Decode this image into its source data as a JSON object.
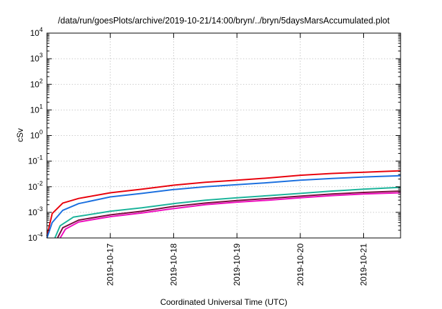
{
  "chart_data": {
    "type": "line",
    "title": "/data/run/goesPlots/archive/2019-10-21/14:00/bryn/../bryn/5daysMarsAccumulated.plot",
    "xlabel": "Coordinated Universal Time (UTC)",
    "ylabel": "cSv",
    "y_scale": "log",
    "ylim": [
      0.0001,
      10000
    ],
    "y_ticks": [
      {
        "value": 0.0001,
        "base": "10",
        "exp": "-4"
      },
      {
        "value": 0.001,
        "base": "10",
        "exp": "-3"
      },
      {
        "value": 0.01,
        "base": "10",
        "exp": "-2"
      },
      {
        "value": 0.1,
        "base": "10",
        "exp": "-1"
      },
      {
        "value": 1,
        "base": "10",
        "exp": "0"
      },
      {
        "value": 10,
        "base": "10",
        "exp": "1"
      },
      {
        "value": 100,
        "base": "10",
        "exp": "2"
      },
      {
        "value": 1000,
        "base": "10",
        "exp": "3"
      },
      {
        "value": 10000,
        "base": "10",
        "exp": "4"
      }
    ],
    "xlim": [
      "2019-10-16T00:00",
      "2019-10-21T14:00"
    ],
    "x_ticks": [
      {
        "value": "2019-10-17T00:00",
        "label": "2019-10-17"
      },
      {
        "value": "2019-10-18T00:00",
        "label": "2019-10-18"
      },
      {
        "value": "2019-10-19T00:00",
        "label": "2019-10-19"
      },
      {
        "value": "2019-10-20T00:00",
        "label": "2019-10-20"
      },
      {
        "value": "2019-10-21T00:00",
        "label": "2019-10-21"
      }
    ],
    "grid": true,
    "legend": "none",
    "series": [
      {
        "color": "#e8000b",
        "points": [
          [
            "2019-10-16T00:00",
            0.00012
          ],
          [
            "2019-10-16T02:00",
            0.0009
          ],
          [
            "2019-10-16T06:00",
            0.0023
          ],
          [
            "2019-10-16T12:00",
            0.0035
          ],
          [
            "2019-10-17T00:00",
            0.0058
          ],
          [
            "2019-10-17T12:00",
            0.008
          ],
          [
            "2019-10-18T00:00",
            0.0115
          ],
          [
            "2019-10-18T12:00",
            0.015
          ],
          [
            "2019-10-19T00:00",
            0.018
          ],
          [
            "2019-10-19T12:00",
            0.022
          ],
          [
            "2019-10-20T00:00",
            0.028
          ],
          [
            "2019-10-20T12:00",
            0.033
          ],
          [
            "2019-10-21T00:00",
            0.037
          ],
          [
            "2019-10-21T14:00",
            0.042
          ]
        ]
      },
      {
        "color": "#1a6fdf",
        "points": [
          [
            "2019-10-16T00:00",
            0.0001
          ],
          [
            "2019-10-16T02:00",
            0.0004
          ],
          [
            "2019-10-16T06:00",
            0.0012
          ],
          [
            "2019-10-16T12:00",
            0.0022
          ],
          [
            "2019-10-17T00:00",
            0.004
          ],
          [
            "2019-10-17T12:00",
            0.0055
          ],
          [
            "2019-10-18T00:00",
            0.0078
          ],
          [
            "2019-10-18T12:00",
            0.01
          ],
          [
            "2019-10-19T00:00",
            0.012
          ],
          [
            "2019-10-19T12:00",
            0.0145
          ],
          [
            "2019-10-20T00:00",
            0.018
          ],
          [
            "2019-10-20T12:00",
            0.021
          ],
          [
            "2019-10-21T00:00",
            0.024
          ],
          [
            "2019-10-21T14:00",
            0.027
          ]
        ]
      },
      {
        "color": "#1ab39a",
        "points": [
          [
            "2019-10-16T03:00",
            0.0001
          ],
          [
            "2019-10-16T05:00",
            0.0003
          ],
          [
            "2019-10-16T10:00",
            0.00065
          ],
          [
            "2019-10-17T00:00",
            0.0011
          ],
          [
            "2019-10-17T12:00",
            0.0015
          ],
          [
            "2019-10-18T00:00",
            0.0022
          ],
          [
            "2019-10-18T12:00",
            0.003
          ],
          [
            "2019-10-19T00:00",
            0.0037
          ],
          [
            "2019-10-19T12:00",
            0.0045
          ],
          [
            "2019-10-20T00:00",
            0.0055
          ],
          [
            "2019-10-20T12:00",
            0.0068
          ],
          [
            "2019-10-21T00:00",
            0.008
          ],
          [
            "2019-10-21T14:00",
            0.0095
          ]
        ]
      },
      {
        "color": "#7a0a3c",
        "points": [
          [
            "2019-10-16T04:00",
            0.0001
          ],
          [
            "2019-10-16T06:00",
            0.00025
          ],
          [
            "2019-10-16T12:00",
            0.0005
          ],
          [
            "2019-10-17T00:00",
            0.0008
          ],
          [
            "2019-10-17T12:00",
            0.0011
          ],
          [
            "2019-10-18T00:00",
            0.0017
          ],
          [
            "2019-10-18T12:00",
            0.0023
          ],
          [
            "2019-10-19T00:00",
            0.0029
          ],
          [
            "2019-10-19T12:00",
            0.0035
          ],
          [
            "2019-10-20T00:00",
            0.0043
          ],
          [
            "2019-10-20T12:00",
            0.0052
          ],
          [
            "2019-10-21T00:00",
            0.006
          ],
          [
            "2019-10-21T14:00",
            0.0068
          ]
        ]
      },
      {
        "color": "#ee0bbd",
        "points": [
          [
            "2019-10-16T05:00",
            0.0001
          ],
          [
            "2019-10-16T07:00",
            0.00022
          ],
          [
            "2019-10-16T12:00",
            0.00042
          ],
          [
            "2019-10-17T00:00",
            0.00068
          ],
          [
            "2019-10-17T12:00",
            0.00095
          ],
          [
            "2019-10-18T00:00",
            0.0014
          ],
          [
            "2019-10-18T12:00",
            0.002
          ],
          [
            "2019-10-19T00:00",
            0.0025
          ],
          [
            "2019-10-19T12:00",
            0.003
          ],
          [
            "2019-10-20T00:00",
            0.0037
          ],
          [
            "2019-10-20T12:00",
            0.0045
          ],
          [
            "2019-10-21T00:00",
            0.0052
          ],
          [
            "2019-10-21T14:00",
            0.0058
          ]
        ]
      }
    ]
  }
}
